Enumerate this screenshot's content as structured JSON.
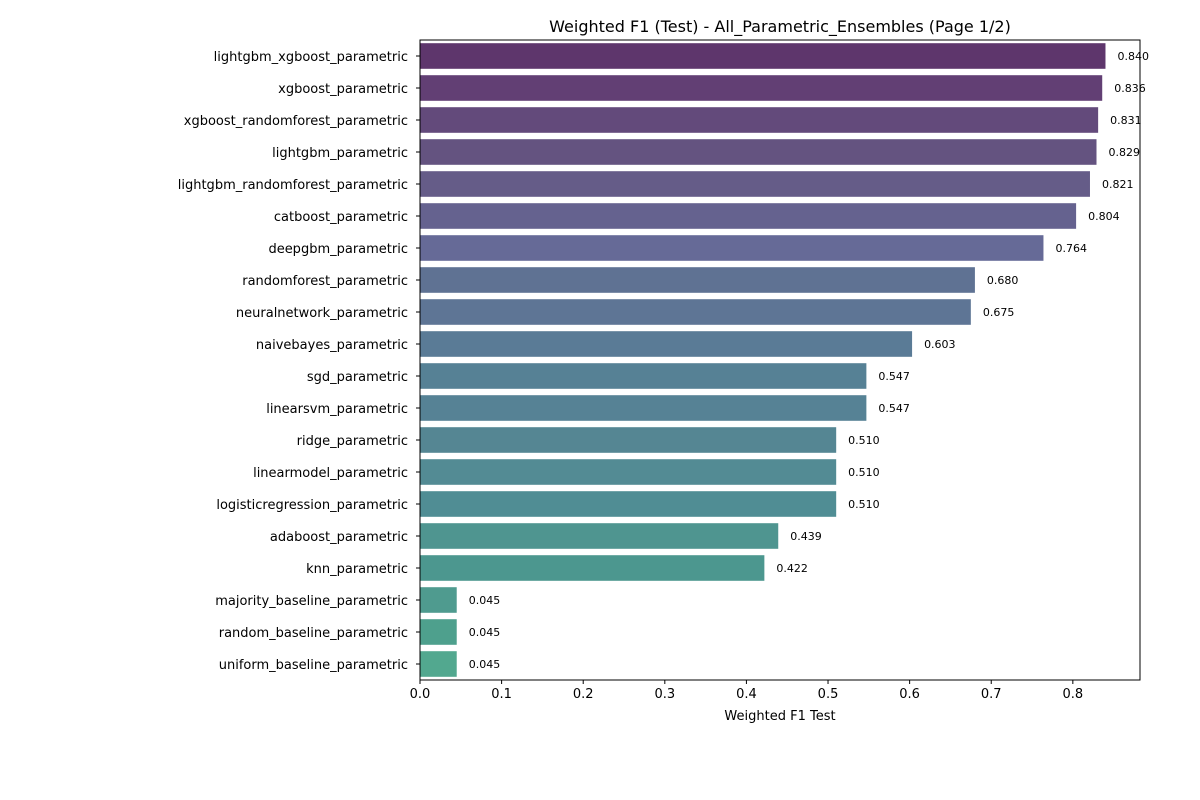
{
  "chart_data": {
    "type": "bar",
    "orientation": "horizontal",
    "title": "Weighted F1 (Test) - All_Parametric_Ensembles (Page 1/2)",
    "xlabel": "Weighted F1 Test",
    "ylabel": "",
    "xlim": [
      0,
      0.8823
    ],
    "xticks": [
      "0.0",
      "0.1",
      "0.2",
      "0.3",
      "0.4",
      "0.5",
      "0.6",
      "0.7",
      "0.8"
    ],
    "categories": [
      "lightgbm_xgboost_parametric",
      "xgboost_parametric",
      "xgboost_randomforest_parametric",
      "lightgbm_parametric",
      "lightgbm_randomforest_parametric",
      "catboost_parametric",
      "deepgbm_parametric",
      "randomforest_parametric",
      "neuralnetwork_parametric",
      "naivebayes_parametric",
      "sgd_parametric",
      "linearsvm_parametric",
      "ridge_parametric",
      "linearmodel_parametric",
      "logisticregression_parametric",
      "adaboost_parametric",
      "knn_parametric",
      "majority_baseline_parametric",
      "random_baseline_parametric",
      "uniform_baseline_parametric"
    ],
    "values": [
      0.84,
      0.836,
      0.831,
      0.829,
      0.821,
      0.804,
      0.764,
      0.68,
      0.675,
      0.603,
      0.547,
      0.547,
      0.51,
      0.51,
      0.51,
      0.439,
      0.422,
      0.045,
      0.045,
      0.045
    ],
    "value_labels": [
      "0.840",
      "0.836",
      "0.831",
      "0.829",
      "0.821",
      "0.804",
      "0.764",
      "0.680",
      "0.675",
      "0.603",
      "0.547",
      "0.547",
      "0.510",
      "0.510",
      "0.510",
      "0.439",
      "0.422",
      "0.045",
      "0.045",
      "0.045"
    ],
    "colors": [
      "#5e366c",
      "#623f74",
      "#634a7b",
      "#645380",
      "#655c88",
      "#65628f",
      "#666a97",
      "#5f7293",
      "#5e7595",
      "#5a7b96",
      "#568195",
      "#568295",
      "#558693",
      "#538b94",
      "#508d94",
      "#4f9590",
      "#4c978f",
      "#4f9b8f",
      "#4ea08d",
      "#52a88f"
    ],
    "grid": false,
    "legend": "none"
  }
}
